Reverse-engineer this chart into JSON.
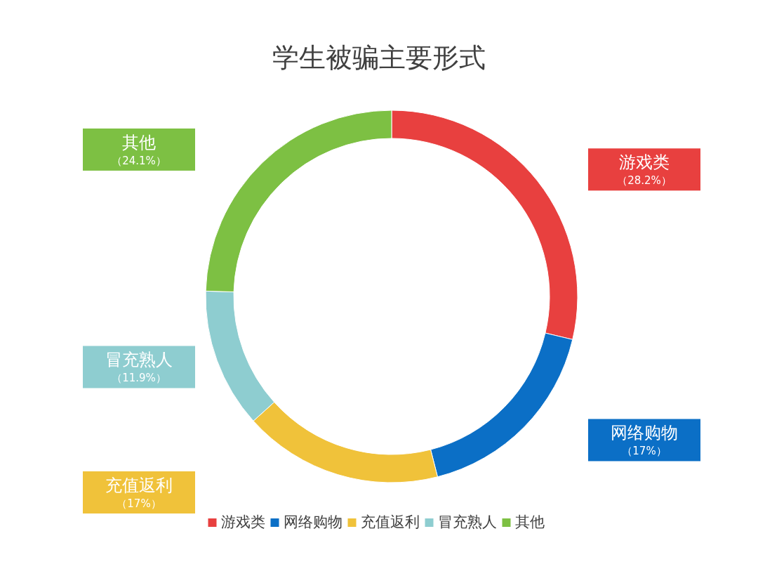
{
  "chart_data": {
    "type": "donut",
    "title": "学生被骗主要形式",
    "categories": [
      "游戏类",
      "网络购物",
      "充值返利",
      "冒充熟人",
      "其他"
    ],
    "values": [
      28.2,
      17,
      17,
      11.9,
      24.1
    ],
    "value_labels": [
      "（28.2%）",
      "（17%）",
      "（17%）",
      "（11.9%）",
      "（24.1%）"
    ],
    "colors": [
      "#e8403f",
      "#0b6fc6",
      "#f0c23a",
      "#8ecdd0",
      "#7dc043"
    ],
    "legend": "bottom"
  }
}
